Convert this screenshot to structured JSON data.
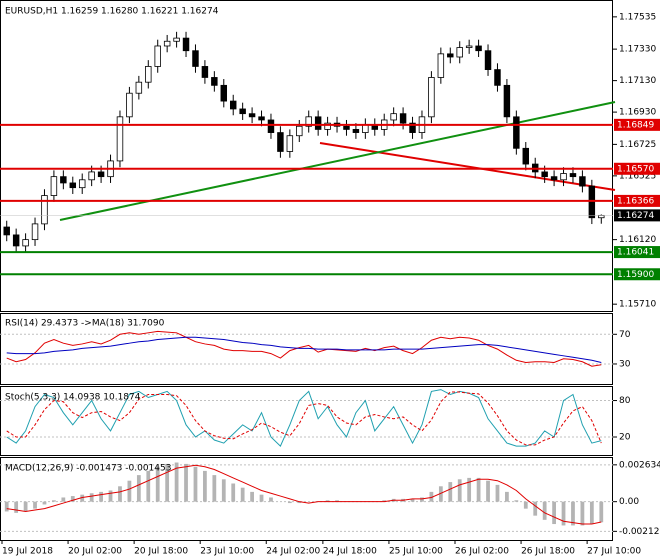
{
  "chart_data": [
    {
      "type": "candlestick",
      "title": "EURUSD,H1  1.16259 1.16280 1.16221 1.16274",
      "categories": [
        "19 Jul 2018",
        null,
        null,
        null,
        null,
        null,
        null,
        "20 Jul 02:00",
        null,
        null,
        null,
        null,
        null,
        null,
        "20 Jul 18:00",
        null,
        null,
        null,
        null,
        null,
        null,
        "23 Jul 10:00",
        null,
        null,
        null,
        null,
        null,
        null,
        "24 Jul 02:00",
        null,
        null,
        null,
        null,
        null,
        "24 Jul 18:00",
        null,
        null,
        null,
        null,
        null,
        null,
        "25 Jul 10:00",
        null,
        null,
        null,
        null,
        null,
        null,
        "26 Jul 02:00",
        null,
        null,
        null,
        null,
        null,
        null,
        "26 Jul 18:00",
        null,
        null,
        null,
        null,
        null,
        null,
        "27 Jul 10:00",
        null
      ],
      "open": [
        1.162,
        1.1615,
        1.1608,
        1.1612,
        1.1622,
        1.164,
        1.1652,
        1.1648,
        1.1645,
        1.165,
        1.1655,
        1.1652,
        1.1662,
        1.169,
        1.1705,
        1.1712,
        1.1722,
        1.1735,
        1.1738,
        1.174,
        1.1732,
        1.1722,
        1.1715,
        1.171,
        1.17,
        1.1695,
        1.1692,
        1.169,
        1.1688,
        1.168,
        1.1668,
        1.1678,
        1.1684,
        1.169,
        1.1682,
        1.1686,
        1.1684,
        1.1682,
        1.168,
        1.1685,
        1.1682,
        1.1688,
        1.1692,
        1.1686,
        1.168,
        1.169,
        1.1715,
        1.173,
        1.1728,
        1.1734,
        1.1735,
        1.1732,
        1.172,
        1.171,
        1.169,
        1.167,
        1.166,
        1.1655,
        1.1652,
        1.165,
        1.1654,
        1.1652,
        1.1646,
        1.16259
      ],
      "high": [
        1.1624,
        1.1619,
        1.1616,
        1.1626,
        1.1644,
        1.1656,
        1.1656,
        1.1652,
        1.1654,
        1.1659,
        1.1659,
        1.1666,
        1.1694,
        1.1709,
        1.1716,
        1.1726,
        1.1739,
        1.1742,
        1.1744,
        1.1744,
        1.1736,
        1.1726,
        1.1719,
        1.1714,
        1.1704,
        1.1699,
        1.1696,
        1.1694,
        1.1692,
        1.1684,
        1.1682,
        1.1688,
        1.1694,
        1.1694,
        1.169,
        1.169,
        1.1688,
        1.1686,
        1.1689,
        1.1689,
        1.1692,
        1.1696,
        1.1696,
        1.169,
        1.1694,
        1.1719,
        1.1734,
        1.1734,
        1.1738,
        1.1739,
        1.1739,
        1.1736,
        1.1724,
        1.1714,
        1.1694,
        1.1674,
        1.1664,
        1.1659,
        1.1656,
        1.1658,
        1.1658,
        1.1656,
        1.165,
        1.1628
      ],
      "low": [
        1.1611,
        1.1604,
        1.1604,
        1.1608,
        1.1618,
        1.1636,
        1.1644,
        1.1641,
        1.1641,
        1.1646,
        1.1648,
        1.1648,
        1.1658,
        1.1686,
        1.1701,
        1.1708,
        1.1718,
        1.1731,
        1.1734,
        1.1728,
        1.1718,
        1.1711,
        1.1706,
        1.1696,
        1.1691,
        1.1688,
        1.1686,
        1.1684,
        1.1676,
        1.1664,
        1.1664,
        1.1674,
        1.168,
        1.1678,
        1.1678,
        1.168,
        1.1678,
        1.1676,
        1.1676,
        1.1678,
        1.1678,
        1.1684,
        1.1682,
        1.1676,
        1.1676,
        1.1686,
        1.1711,
        1.1724,
        1.1724,
        1.173,
        1.1728,
        1.1716,
        1.1706,
        1.1686,
        1.1666,
        1.1656,
        1.1651,
        1.1648,
        1.1646,
        1.1646,
        1.1648,
        1.1642,
        1.16219,
        1.16221
      ],
      "close": [
        1.1615,
        1.1608,
        1.1612,
        1.1622,
        1.164,
        1.1652,
        1.1648,
        1.1645,
        1.165,
        1.1655,
        1.1652,
        1.1662,
        1.169,
        1.1705,
        1.1712,
        1.1722,
        1.1735,
        1.1738,
        1.174,
        1.1732,
        1.1722,
        1.1715,
        1.171,
        1.17,
        1.1695,
        1.1692,
        1.169,
        1.1688,
        1.168,
        1.1668,
        1.1678,
        1.1684,
        1.169,
        1.1682,
        1.1686,
        1.1684,
        1.1682,
        1.168,
        1.1685,
        1.1682,
        1.1688,
        1.1692,
        1.1686,
        1.168,
        1.169,
        1.1715,
        1.173,
        1.1728,
        1.1734,
        1.1735,
        1.1732,
        1.172,
        1.171,
        1.169,
        1.167,
        1.166,
        1.1655,
        1.1652,
        1.165,
        1.1654,
        1.1652,
        1.1646,
        1.16259,
        1.16274
      ],
      "up_color": "#ffffff",
      "down_color": "#000000",
      "ylim": [
        1.15673,
        1.17623
      ],
      "yticks": [
        {
          "value": 1.17535,
          "label": "1.17535"
        },
        {
          "value": 1.1733,
          "label": "1.17330"
        },
        {
          "value": 1.1713,
          "label": "1.17130"
        },
        {
          "value": 1.1693,
          "label": "1.16930"
        },
        {
          "value": 1.16725,
          "label": "1.16725"
        },
        {
          "value": 1.16525,
          "label": "1.16525"
        },
        {
          "value": 1.1612,
          "label": "1.16120"
        },
        {
          "value": 1.1571,
          "label": "1.15710"
        }
      ],
      "levels": [
        {
          "value": 1.16849,
          "label": "1.16849",
          "color": "#e00000"
        },
        {
          "value": 1.1657,
          "label": "1.16570",
          "color": "#e00000"
        },
        {
          "value": 1.16366,
          "label": "1.16366",
          "color": "#e00000"
        },
        {
          "value": 1.16041,
          "label": "1.16041",
          "color": "#008000"
        },
        {
          "value": 1.159,
          "label": "1.15900",
          "color": "#008000"
        }
      ],
      "last_price": {
        "value": 1.16274,
        "label": "1.16274",
        "color": "#000000"
      }
    },
    {
      "type": "line",
      "title": "RSI(14) 29.4373  ->MA(18) 31.7090",
      "ylim": [
        3,
        96
      ],
      "yticks": [
        70,
        30
      ],
      "series": [
        {
          "color": "#e00000",
          "dash": false,
          "values": [
            38,
            33,
            36,
            45,
            58,
            63,
            58,
            55,
            57,
            60,
            57,
            62,
            70,
            72,
            70,
            72,
            74,
            73,
            72,
            66,
            60,
            57,
            55,
            50,
            48,
            48,
            47,
            47,
            44,
            38,
            48,
            52,
            55,
            46,
            50,
            49,
            48,
            47,
            51,
            48,
            52,
            54,
            48,
            44,
            52,
            62,
            66,
            64,
            66,
            65,
            62,
            55,
            50,
            42,
            35,
            32,
            33,
            33,
            32,
            37,
            36,
            33,
            27,
            29
          ]
        },
        {
          "color": "#0000c0",
          "dash": false,
          "values": [
            45,
            44,
            44,
            44,
            45,
            47,
            48,
            49,
            51,
            52,
            53,
            54,
            56,
            58,
            60,
            61,
            63,
            64,
            65,
            66,
            66,
            65,
            64,
            63,
            61,
            59,
            58,
            56,
            55,
            53,
            52,
            51,
            51,
            50,
            50,
            50,
            49,
            49,
            49,
            49,
            49,
            50,
            50,
            50,
            50,
            51,
            52,
            53,
            54,
            55,
            56,
            56,
            55,
            53,
            51,
            49,
            47,
            45,
            43,
            41,
            39,
            37,
            35,
            32
          ]
        }
      ]
    },
    {
      "type": "line",
      "title": "Stoch(5,3,3) 14.0938 10.1874",
      "ylim": [
        -8,
        99
      ],
      "yticks": [
        80,
        20
      ],
      "series": [
        {
          "color": "#20a0b0",
          "dash": false,
          "values": [
            20,
            10,
            30,
            70,
            90,
            85,
            60,
            40,
            60,
            80,
            50,
            30,
            60,
            90,
            95,
            85,
            90,
            95,
            80,
            40,
            20,
            30,
            15,
            10,
            25,
            40,
            30,
            60,
            20,
            5,
            40,
            80,
            95,
            50,
            70,
            40,
            20,
            60,
            80,
            30,
            50,
            70,
            40,
            10,
            40,
            95,
            98,
            90,
            95,
            92,
            85,
            50,
            30,
            10,
            5,
            5,
            10,
            30,
            20,
            80,
            90,
            40,
            10,
            14
          ]
        },
        {
          "color": "#e00000",
          "dash": true,
          "values": [
            30,
            20,
            20,
            40,
            65,
            80,
            78,
            60,
            52,
            60,
            62,
            53,
            47,
            60,
            82,
            90,
            90,
            90,
            88,
            72,
            47,
            30,
            22,
            18,
            17,
            25,
            32,
            43,
            37,
            28,
            22,
            42,
            72,
            75,
            72,
            53,
            43,
            40,
            53,
            57,
            53,
            50,
            53,
            40,
            30,
            48,
            78,
            94,
            94,
            92,
            91,
            76,
            55,
            30,
            15,
            7,
            7,
            15,
            20,
            43,
            63,
            70,
            47,
            10
          ]
        }
      ]
    },
    {
      "type": "combo",
      "title": "MACD(12,26,9) -0.001473 -0.001453",
      "ylim": [
        -0.00267,
        0.00298
      ],
      "yticks": [
        0.002634,
        {
          "value": 0,
          "label": "0.00"
        },
        -0.002123
      ],
      "series": [
        {
          "kind": "bar",
          "color": "#b4b4b4",
          "values": [
            -0.0007,
            -0.0008,
            -0.0007,
            -0.0005,
            -0.0002,
            0.0001,
            0.0003,
            0.0004,
            0.0005,
            0.0006,
            0.0007,
            0.0008,
            0.0011,
            0.0015,
            0.0019,
            0.0022,
            0.0025,
            0.0027,
            0.0028,
            0.0027,
            0.0025,
            0.0022,
            0.0019,
            0.0016,
            0.0013,
            0.001,
            0.0007,
            0.0005,
            0.0003,
            0,
            -0.0001,
            -0.0001,
            0,
            0,
            0.0001,
            0.0001,
            0,
            0,
            0,
            0,
            0.0001,
            0.0002,
            0.0002,
            0.0002,
            0.0003,
            0.0007,
            0.0011,
            0.0014,
            0.0016,
            0.0017,
            0.0017,
            0.0015,
            0.0012,
            0.0007,
            0.0001,
            -0.0005,
            -0.001,
            -0.0013,
            -0.0016,
            -0.0017,
            -0.0017,
            -0.0017,
            -0.0016,
            -0.001473
          ]
        },
        {
          "kind": "line",
          "color": "#e00000",
          "values": [
            -0.0005,
            -0.0006,
            -0.0007,
            -0.0006,
            -0.0005,
            -0.0003,
            -0.0001,
            0.0001,
            0.0003,
            0.0004,
            0.0005,
            0.0006,
            0.0007,
            0.0009,
            0.0012,
            0.0015,
            0.0018,
            0.0021,
            0.0024,
            0.0025,
            0.0026,
            0.0025,
            0.0023,
            0.002,
            0.0017,
            0.0014,
            0.0011,
            0.0008,
            0.0006,
            0.0004,
            0.0002,
            0,
            -0.0001,
            0,
            0,
            0,
            0,
            0,
            0,
            0,
            0,
            0.0001,
            0.0001,
            0.0002,
            0.0002,
            0.0003,
            0.0006,
            0.0009,
            0.0012,
            0.0014,
            0.0016,
            0.0016,
            0.0015,
            0.0012,
            0.0008,
            0.0002,
            -0.0003,
            -0.0008,
            -0.0011,
            -0.0014,
            -0.0015,
            -0.0016,
            -0.0016,
            -0.001453
          ]
        }
      ]
    }
  ]
}
